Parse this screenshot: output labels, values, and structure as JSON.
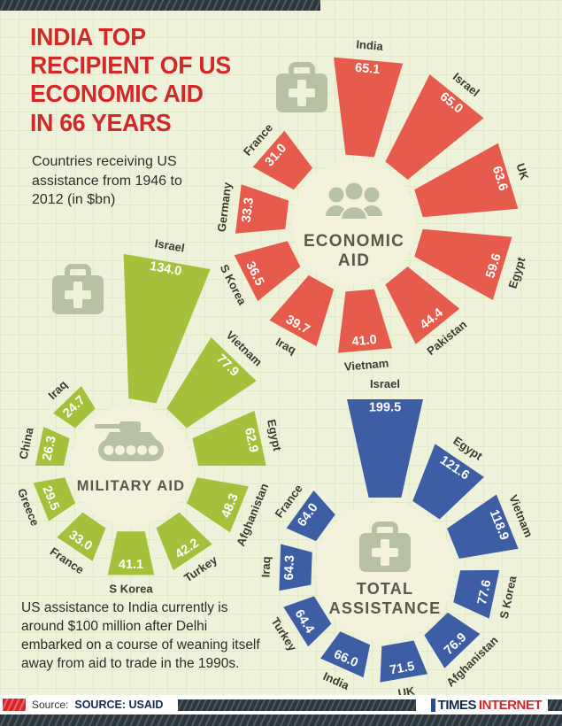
{
  "palette": {
    "background": "#eff2da",
    "grid_line": "#e3e8c6",
    "title_red": "#d3282a",
    "economic_color": "#e75b4d",
    "military_color": "#a5c13c",
    "total_color": "#3d5da4",
    "center_fill": "#f4f1dd",
    "icon_sage": "#b9c1a4",
    "country_label_color": "#3a3b30",
    "center_title_color": "#575949",
    "stripe_dark": "#2b353b",
    "stripe_red": "#d3272b"
  },
  "header": {
    "title_lines": [
      "INDIA TOP",
      "RECIPIENT OF US",
      "ECONOMIC AID",
      "IN 66 YEARS"
    ],
    "subtitle": "Countries receiving US assistance from 1946 to 2012 (in $bn)"
  },
  "note": "US assistance to India currently is around $100 million after Delhi embarked on a course of weaning itself away from aid to trade in the 1990s.",
  "footer": {
    "source_prefix": "Source:",
    "source_text": "SOURCE: USAID",
    "brand_first": "TIMES",
    "brand_second": "INTERNET"
  },
  "decorative_icons": [
    "medkit-icon",
    "medkit-icon"
  ],
  "chart_data": [
    {
      "type": "radial_bar",
      "title": "ECONOMIC AID",
      "center_lines": [
        "ECONOMIC",
        "AID"
      ],
      "icon": "people-icon",
      "color": "#e75b4d",
      "unit": "$bn",
      "series": [
        {
          "label": "India",
          "value": 65.1
        },
        {
          "label": "Israel",
          "value": 65.0
        },
        {
          "label": "UK",
          "value": 63.6
        },
        {
          "label": "Egypt",
          "value": 59.6
        },
        {
          "label": "Pakistan",
          "value": 44.4
        },
        {
          "label": "Vietnam",
          "value": 41.0
        },
        {
          "label": "Iraq",
          "value": 39.7
        },
        {
          "label": "S Korea",
          "value": 36.5
        },
        {
          "label": "Germany",
          "value": 33.3
        },
        {
          "label": "France",
          "value": 31.0
        }
      ]
    },
    {
      "type": "radial_bar",
      "title": "MILITARY AID",
      "center_lines": [
        "MILITARY AID"
      ],
      "icon": "tank-icon",
      "color": "#a5c13c",
      "unit": "$bn",
      "series": [
        {
          "label": "Israel",
          "value": 134.0
        },
        {
          "label": "Vietnam",
          "value": 77.9
        },
        {
          "label": "Egypt",
          "value": 62.9
        },
        {
          "label": "Afghanistan",
          "value": 48.3
        },
        {
          "label": "Turkey",
          "value": 42.2
        },
        {
          "label": "S Korea",
          "value": 41.1
        },
        {
          "label": "France",
          "value": 33.0
        },
        {
          "label": "Greece",
          "value": 29.5
        },
        {
          "label": "China",
          "value": 26.3
        },
        {
          "label": "Iraq",
          "value": 24.7
        }
      ]
    },
    {
      "type": "radial_bar",
      "title": "TOTAL ASSISTANCE",
      "center_lines": [
        "TOTAL",
        "ASSISTANCE"
      ],
      "icon": "medkit-icon",
      "color": "#3d5da4",
      "unit": "$bn",
      "series": [
        {
          "label": "Israel",
          "value": 199.5
        },
        {
          "label": "Egypt",
          "value": 121.6
        },
        {
          "label": "Vietnam",
          "value": 118.9
        },
        {
          "label": "S Korea",
          "value": 77.6
        },
        {
          "label": "Afghanistan",
          "value": 76.9
        },
        {
          "label": "UK",
          "value": 71.5
        },
        {
          "label": "India",
          "value": 66.0
        },
        {
          "label": "Turkey",
          "value": 64.4
        },
        {
          "label": "Iraq",
          "value": 64.3
        },
        {
          "label": "France",
          "value": 64.0
        }
      ]
    }
  ]
}
